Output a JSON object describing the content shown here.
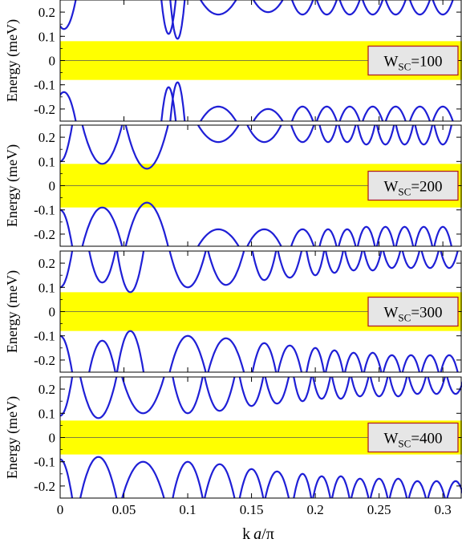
{
  "chart_data": {
    "type": "line",
    "xlabel": "k a/π",
    "ylabel": "Energy (meV)",
    "xlim": [
      0,
      0.315
    ],
    "ylim": [
      -0.25,
      0.25
    ],
    "x_ticks": [
      0,
      0.05,
      0.1,
      0.15,
      0.2,
      0.25,
      0.3
    ],
    "x_tick_labels": [
      "0",
      "0.05",
      "0.1",
      "0.15",
      "0.2",
      "0.25",
      "0.3"
    ],
    "y_ticks": [
      -0.2,
      -0.1,
      0,
      0.1,
      0.2
    ],
    "y_tick_labels": [
      "-0.2",
      "-0.1",
      "0",
      "0.1",
      "0.2"
    ],
    "line_color": "#1f1fd6",
    "gap_band_color": "#ffff00",
    "grid": false,
    "legend_position": "right",
    "panels": [
      {
        "label_main": "W",
        "label_sub": "SC",
        "label_value": "=100",
        "gap": 0.08,
        "branch_minima_x": [
          0.003,
          0.085,
          0.092,
          0.124,
          0.163,
          0.19,
          0.209,
          0.227,
          0.245,
          0.263,
          0.282,
          0.3
        ],
        "branch_minima_y": [
          0.13,
          0.11,
          0.09,
          0.19,
          0.2,
          0.19,
          0.19,
          0.19,
          0.19,
          0.19,
          0.19,
          0.19
        ]
      },
      {
        "label_main": "W",
        "label_sub": "SC",
        "label_value": "=200",
        "gap": 0.09,
        "branch_minima_x": [
          0.0,
          0.033,
          0.068,
          0.124,
          0.16,
          0.19,
          0.21,
          0.225,
          0.24,
          0.255,
          0.27,
          0.285,
          0.3
        ],
        "branch_minima_y": [
          0.1,
          0.09,
          0.07,
          0.18,
          0.18,
          0.18,
          0.18,
          0.18,
          0.17,
          0.17,
          0.17,
          0.17,
          0.17
        ]
      },
      {
        "label_main": "W",
        "label_sub": "SC",
        "label_value": "=300",
        "gap": 0.08,
        "branch_minima_x": [
          0.0,
          0.033,
          0.055,
          0.1,
          0.13,
          0.16,
          0.18,
          0.2,
          0.215,
          0.23,
          0.245,
          0.26,
          0.275,
          0.29,
          0.305
        ],
        "branch_minima_y": [
          0.1,
          0.12,
          0.08,
          0.1,
          0.11,
          0.13,
          0.14,
          0.15,
          0.16,
          0.17,
          0.17,
          0.18,
          0.18,
          0.18,
          0.18
        ]
      },
      {
        "label_main": "W",
        "label_sub": "SC",
        "label_value": "=400",
        "gap": 0.07,
        "branch_minima_x": [
          0.0,
          0.03,
          0.065,
          0.1,
          0.125,
          0.15,
          0.17,
          0.19,
          0.205,
          0.22,
          0.235,
          0.25,
          0.265,
          0.28,
          0.295,
          0.31
        ],
        "branch_minima_y": [
          0.09,
          0.08,
          0.1,
          0.1,
          0.11,
          0.13,
          0.14,
          0.15,
          0.16,
          0.16,
          0.17,
          0.17,
          0.17,
          0.18,
          0.18,
          0.18
        ]
      }
    ]
  }
}
